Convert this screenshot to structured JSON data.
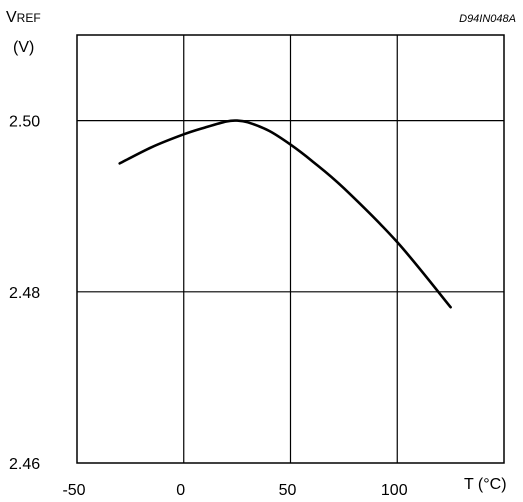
{
  "chart_data": {
    "type": "line",
    "code": "D94IN048A",
    "ylabel_main": "V",
    "ylabel_sub": "REF",
    "ylabel_unit": "(V)",
    "xlabel": "T (°C)",
    "xlim": [
      -50,
      150
    ],
    "ylim": [
      2.46,
      2.51
    ],
    "x_ticks": [
      -50,
      0,
      50,
      100
    ],
    "x_tick_labels": [
      "-50",
      "0",
      "50",
      "100"
    ],
    "y_ticks": [
      2.46,
      2.48,
      2.5
    ],
    "y_tick_labels": [
      "2.46",
      "2.48",
      "2.50"
    ],
    "grid": true,
    "series": [
      {
        "color": "#000000",
        "x": [
          -30,
          -15,
          0,
          10,
          20,
          25,
          30,
          40,
          50,
          60,
          75,
          100,
          125
        ],
        "y": [
          2.495,
          2.4969,
          2.4984,
          2.4992,
          2.4999,
          2.5,
          2.4998,
          2.4988,
          2.4972,
          2.4953,
          2.4921,
          2.4858,
          2.4782
        ]
      }
    ]
  }
}
